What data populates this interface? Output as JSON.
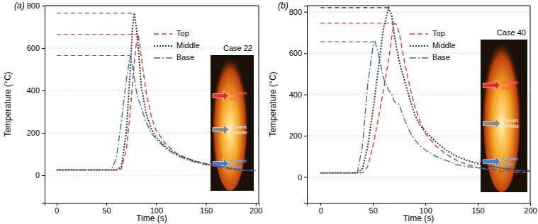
{
  "chart_data": [
    {
      "type": "line",
      "label": "(a)",
      "title": "Case 22",
      "x_label": "Time (s)",
      "y_label": "Temperature (°C)",
      "annotations": [
        [
          "Crown",
          "top"
        ],
        [
          "Crown",
          "middle"
        ],
        [
          "Crown",
          "base"
        ]
      ],
      "xlim": [
        -12,
        203
      ],
      "xticks": [
        0,
        50,
        100,
        150,
        200
      ],
      "ylim": [
        -130,
        800
      ],
      "yticks": [
        0,
        200,
        400,
        600,
        800
      ],
      "grid": true,
      "legend": "top-center",
      "x": [
        0,
        10,
        20,
        30,
        40,
        50,
        55,
        60,
        65,
        70,
        74,
        76,
        78,
        80,
        82,
        85,
        90,
        95,
        100,
        110,
        120,
        130,
        140,
        150,
        160,
        170,
        180,
        190,
        200
      ],
      "series": [
        {
          "name": "Top",
          "color": "#e8312f",
          "line_style": "dashed",
          "peak": 665,
          "values": [
            25,
            25,
            25,
            25,
            25,
            25,
            25,
            25,
            30,
            120,
            300,
            420,
            530,
            620,
            665,
            560,
            390,
            280,
            210,
            145,
            105,
            82,
            65,
            55,
            48,
            35,
            27,
            23,
            22
          ]
        },
        {
          "name": "Middle",
          "color": "#333333",
          "line_style": "dotted",
          "peak": 765,
          "values": [
            25,
            25,
            25,
            25,
            25,
            25,
            25,
            25,
            40,
            200,
            500,
            680,
            765,
            700,
            600,
            420,
            290,
            220,
            180,
            130,
            100,
            80,
            65,
            52,
            45,
            35,
            28,
            24,
            22
          ]
        },
        {
          "name": "Base",
          "color": "#2f6fc0",
          "line_style": "dashdot",
          "peak": 565,
          "values": [
            25,
            25,
            25,
            25,
            25,
            25,
            25,
            80,
            250,
            450,
            565,
            520,
            460,
            400,
            360,
            320,
            250,
            200,
            170,
            125,
            95,
            75,
            60,
            50,
            42,
            32,
            25,
            22,
            22
          ]
        }
      ]
    },
    {
      "type": "line",
      "label": "(b)",
      "title": "Case 40",
      "x_label": "Time (s)",
      "y_label": "Temperature (°C)",
      "annotations": [
        [
          "Crown",
          "top"
        ],
        [
          "Crown",
          "middle"
        ],
        [
          "Crown",
          "base"
        ]
      ],
      "xlim": [
        -13,
        200
      ],
      "xticks": [
        0,
        50,
        100,
        150,
        200
      ],
      "ylim": [
        -125,
        830
      ],
      "yticks": [
        0,
        200,
        400,
        600,
        800
      ],
      "grid": true,
      "legend": "top-center",
      "x": [
        0,
        10,
        20,
        30,
        35,
        40,
        45,
        50,
        52,
        55,
        60,
        65,
        68,
        70,
        72,
        75,
        80,
        85,
        90,
        95,
        100,
        110,
        120,
        130,
        140,
        150,
        160,
        170,
        180,
        190,
        200
      ],
      "series": [
        {
          "name": "Top",
          "color": "#e8312f",
          "line_style": "dashed",
          "peak": 745,
          "values": [
            20,
            20,
            20,
            20,
            20,
            20,
            50,
            150,
            200,
            280,
            420,
            570,
            680,
            745,
            740,
            700,
            560,
            440,
            340,
            270,
            210,
            150,
            110,
            80,
            60,
            45,
            35,
            28,
            25,
            22,
            22
          ]
        },
        {
          "name": "Middle",
          "color": "#333333",
          "line_style": "dotted",
          "peak": 820,
          "values": [
            20,
            20,
            20,
            20,
            20,
            40,
            150,
            320,
            400,
            520,
            720,
            820,
            780,
            700,
            640,
            560,
            470,
            380,
            300,
            250,
            220,
            170,
            130,
            100,
            80,
            65,
            55,
            45,
            38,
            33,
            30
          ]
        },
        {
          "name": "Base",
          "color": "#2f6fc0",
          "line_style": "dashdot",
          "peak": 655,
          "values": [
            20,
            20,
            20,
            20,
            20,
            150,
            450,
            630,
            655,
            600,
            480,
            420,
            400,
            370,
            360,
            350,
            280,
            220,
            180,
            150,
            130,
            100,
            80,
            60,
            50,
            45,
            40,
            35,
            32,
            30,
            28
          ]
        }
      ]
    }
  ]
}
